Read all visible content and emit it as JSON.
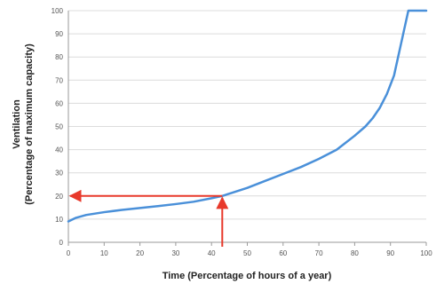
{
  "chart_data": {
    "type": "line",
    "title": "",
    "xlabel": "Time (Percentage of hours of a year)",
    "ylabel_line1": "Ventilation",
    "ylabel_line2": "(Percentage of maximum capacity)",
    "xlim": [
      0,
      100
    ],
    "ylim": [
      0,
      100
    ],
    "x_ticks": [
      0,
      10,
      20,
      30,
      40,
      50,
      60,
      70,
      80,
      90,
      100
    ],
    "y_ticks": [
      0,
      10,
      20,
      30,
      40,
      50,
      60,
      70,
      80,
      90,
      100
    ],
    "grid": true,
    "series": [
      {
        "color": "#4a90d9",
        "x": [
          0,
          2,
          5,
          10,
          15,
          20,
          25,
          30,
          35,
          40,
          43,
          45,
          50,
          55,
          60,
          65,
          70,
          75,
          80,
          83,
          85,
          87,
          89,
          91,
          93,
          95,
          100
        ],
        "y": [
          9,
          10.5,
          11.8,
          13,
          14,
          14.8,
          15.6,
          16.5,
          17.5,
          19,
          20,
          21,
          23.5,
          26.5,
          29.5,
          32.5,
          36,
          40,
          46,
          50,
          53.5,
          58,
          64,
          72,
          86,
          100,
          100
        ]
      }
    ],
    "annotation": {
      "color": "#e8392b",
      "x": 43,
      "y": 20
    }
  }
}
